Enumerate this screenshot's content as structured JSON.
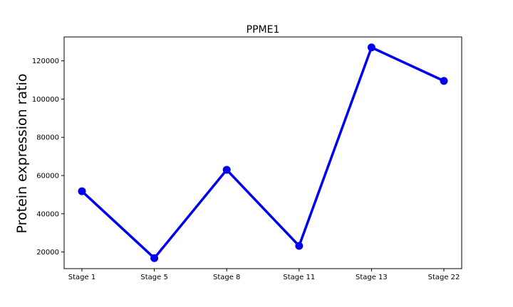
{
  "chart_data": {
    "type": "line",
    "title": "PPME1",
    "xlabel": "",
    "ylabel": "Protein expression ratio",
    "categories": [
      "Stage 1",
      "Stage 5",
      "Stage 8",
      "Stage 11",
      "Stage 13",
      "Stage 22"
    ],
    "series": [
      {
        "values": [
          51800,
          16800,
          63000,
          23200,
          127000,
          109500
        ],
        "color": "#0000ee"
      }
    ],
    "yticks": [
      20000,
      40000,
      60000,
      80000,
      100000,
      120000
    ],
    "ytick_labels": [
      "20000",
      "40000",
      "60000",
      "80000",
      "100000",
      "120000"
    ],
    "ylim": [
      11300,
      132500
    ],
    "grid": false,
    "legend": "none"
  }
}
